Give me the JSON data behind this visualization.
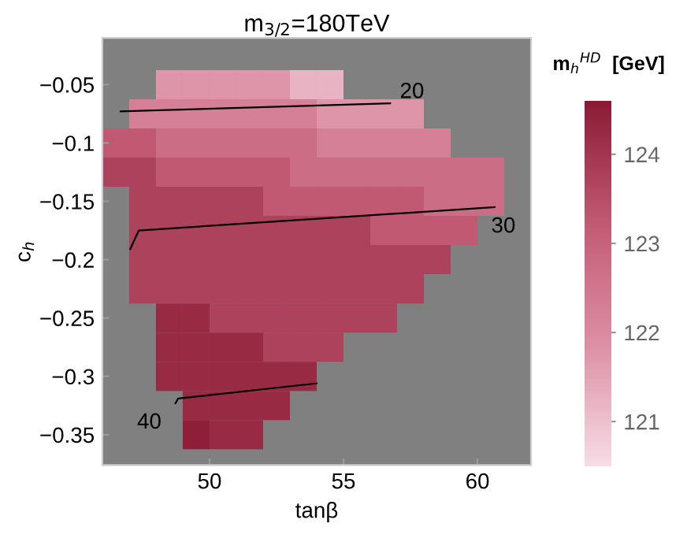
{
  "chart_data": {
    "type": "heatmap",
    "title": "m$_{3/2}$=180TeV",
    "xlabel": "tanβ",
    "ylabel": "c$_{h}$",
    "clabel": "m$_{h}$$^{HD}$  [GeV]",
    "x": [
      46.5,
      47.5,
      48.5,
      49.5,
      50.5,
      51.5,
      52.5,
      53.5,
      54.5,
      55.5,
      56.5,
      57.5,
      58.5,
      59.5,
      60.5
    ],
    "y": [
      -0.05,
      -0.075,
      -0.1,
      -0.125,
      -0.15,
      -0.175,
      -0.2,
      -0.225,
      -0.25,
      -0.275,
      -0.3,
      -0.325,
      -0.35
    ],
    "cells": [
      [
        null,
        null,
        121.75,
        121.75,
        121.75,
        121.75,
        121.75,
        121.25,
        121.25,
        null,
        null,
        null,
        null,
        null,
        null
      ],
      [
        null,
        122.25,
        122.25,
        122.25,
        122.25,
        122.25,
        122.25,
        122.25,
        121.75,
        121.75,
        121.75,
        121.75,
        null,
        null,
        null
      ],
      [
        123.25,
        123.25,
        122.75,
        122.75,
        122.75,
        122.75,
        122.75,
        122.75,
        122.25,
        122.25,
        122.25,
        122.25,
        122.25,
        null,
        null
      ],
      [
        123.75,
        123.75,
        123.25,
        123.25,
        123.25,
        123.25,
        123.25,
        122.75,
        122.75,
        122.75,
        122.75,
        122.75,
        122.75,
        122.75,
        122.75
      ],
      [
        null,
        123.75,
        123.75,
        123.75,
        123.75,
        123.75,
        123.25,
        123.25,
        123.25,
        123.25,
        123.25,
        123.25,
        122.75,
        122.75,
        122.75
      ],
      [
        null,
        123.75,
        123.75,
        123.75,
        123.75,
        123.75,
        123.75,
        123.75,
        123.75,
        123.75,
        123.25,
        123.25,
        123.25,
        123.25,
        null
      ],
      [
        null,
        123.75,
        123.75,
        123.75,
        123.75,
        123.75,
        123.75,
        123.75,
        123.75,
        123.75,
        123.75,
        123.75,
        123.75,
        null,
        null
      ],
      [
        null,
        123.75,
        123.75,
        123.75,
        123.75,
        123.75,
        123.75,
        123.75,
        123.75,
        123.75,
        123.75,
        123.75,
        null,
        null,
        null
      ],
      [
        null,
        null,
        124.25,
        124.25,
        123.75,
        123.75,
        123.75,
        123.75,
        123.75,
        123.75,
        123.75,
        null,
        null,
        null,
        null
      ],
      [
        null,
        null,
        124.25,
        124.25,
        124.25,
        124.25,
        123.75,
        123.75,
        123.75,
        null,
        null,
        null,
        null,
        null,
        null
      ],
      [
        null,
        null,
        124.25,
        124.25,
        124.25,
        124.25,
        124.25,
        124.25,
        null,
        null,
        null,
        null,
        null,
        null,
        null
      ],
      [
        null,
        null,
        null,
        124.25,
        124.25,
        124.25,
        124.25,
        null,
        null,
        null,
        null,
        null,
        null,
        null,
        null
      ],
      [
        null,
        null,
        null,
        124.5,
        124.25,
        124.25,
        null,
        null,
        null,
        null,
        null,
        null,
        null,
        null,
        null
      ]
    ],
    "clim": [
      120.5,
      124.6
    ],
    "cticks": [
      121,
      122,
      123,
      124
    ],
    "series": [
      {
        "type": "line",
        "color": "#000000",
        "x": [
          46.68,
          56.74
        ],
        "values": [
          -0.073,
          -0.066
        ]
      },
      {
        "type": "line",
        "color": "#000000",
        "x": [
          47.04,
          47.36,
          60.64
        ],
        "values": [
          -0.191,
          -0.175,
          -0.155
        ]
      },
      {
        "type": "line",
        "color": "#000000",
        "x": [
          48.73,
          48.83,
          54.0
        ],
        "values": [
          -0.323,
          -0.319,
          -0.306
        ]
      }
    ],
    "annotations": [
      {
        "text": "20",
        "x": 56.74,
        "y": -0.066
      },
      {
        "text": "30",
        "x": 60.64,
        "y": -0.155
      },
      {
        "text": "40",
        "x": 48.73,
        "y": -0.323
      }
    ],
    "xlim": [
      46.0,
      62.0
    ],
    "ylim": [
      -0.376,
      -0.01
    ],
    "xticks": [
      50,
      55,
      60
    ],
    "yticks": [
      -0.05,
      -0.1,
      -0.15,
      -0.2,
      -0.25,
      -0.3,
      -0.35
    ]
  }
}
